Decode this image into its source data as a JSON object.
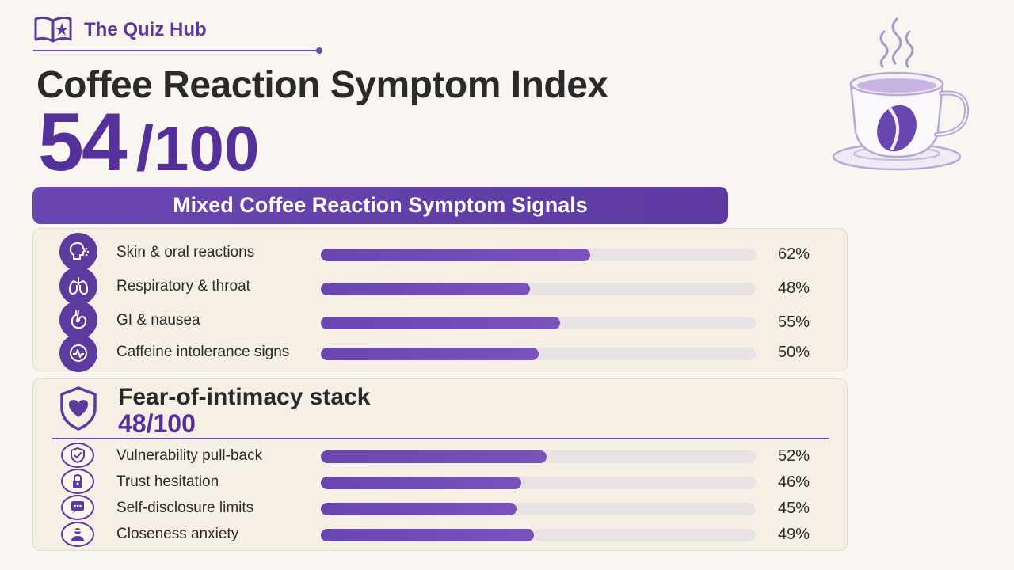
{
  "brand": {
    "name": "The Quiz Hub",
    "icon": "book-star-icon"
  },
  "header": {
    "title": "Coffee Reaction Symptom Index",
    "score": "54",
    "score_max": "/100",
    "banner": "Mixed Coffee Reaction Symptom Signals"
  },
  "illustration": {
    "icon": "coffee-cup-bean-icon"
  },
  "colors": {
    "accent": "#5d3a9e",
    "track": "#e8e2e3",
    "background": "#f9f5f0"
  },
  "symptoms": [
    {
      "label": "Skin & oral reactions",
      "percent": 62,
      "percent_label": "62%",
      "icon": "face-reaction-icon"
    },
    {
      "label": "Respiratory & throat",
      "percent": 48,
      "percent_label": "48%",
      "icon": "lungs-icon"
    },
    {
      "label": "GI & nausea",
      "percent": 55,
      "percent_label": "55%",
      "icon": "stomach-icon"
    },
    {
      "label": "Caffeine intolerance signs",
      "percent": 50,
      "percent_label": "50%",
      "icon": "heart-rate-icon"
    }
  ],
  "stack": {
    "title": "Fear-of-intimacy stack",
    "score": "48/100",
    "icon": "shield-heart-icon",
    "items": [
      {
        "label": "Vulnerability pull-back",
        "percent": 52,
        "percent_label": "52%",
        "icon": "shield-check-icon"
      },
      {
        "label": "Trust hesitation",
        "percent": 46,
        "percent_label": "46%",
        "icon": "lock-icon"
      },
      {
        "label": "Self-disclosure limits",
        "percent": 45,
        "percent_label": "45%",
        "icon": "chat-bubble-icon"
      },
      {
        "label": "Closeness anxiety",
        "percent": 49,
        "percent_label": "49%",
        "icon": "person-icon"
      }
    ]
  }
}
